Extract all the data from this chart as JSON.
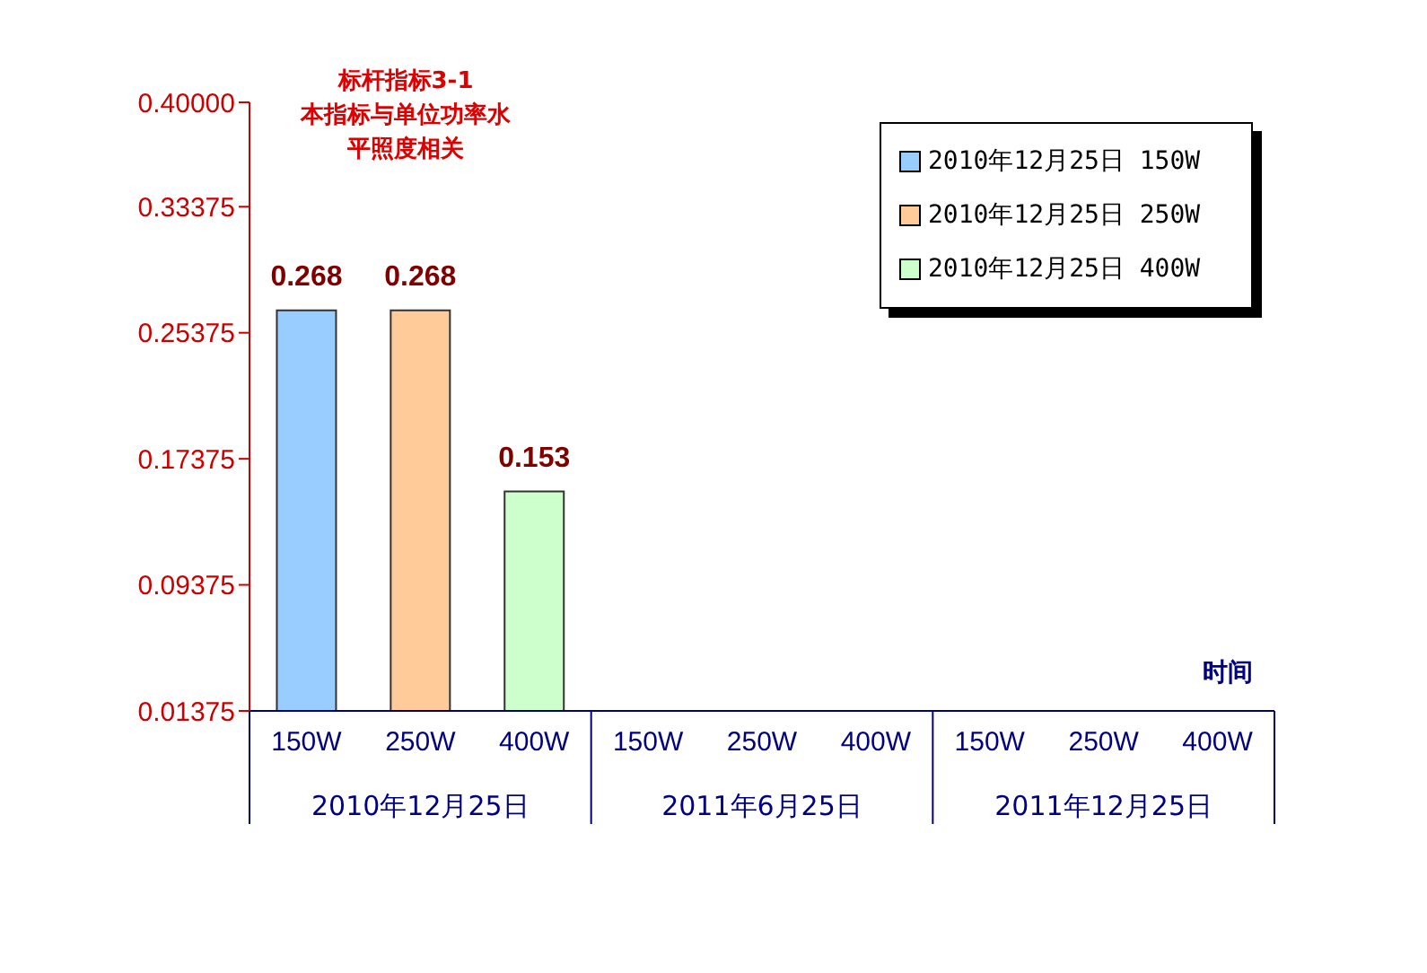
{
  "chart_data": {
    "type": "bar",
    "title": "标杆指标3-1",
    "subtitle": "本指标与单位功率水平照度相关",
    "xlabel": "时间",
    "categories": [
      "150W",
      "250W",
      "400W",
      "150W",
      "250W",
      "400W",
      "150W",
      "250W",
      "400W"
    ],
    "series": [
      {
        "name": "2010年12月25日 150W",
        "color": "#99ccff",
        "values": [
          0.268,
          null,
          null,
          null,
          null,
          null,
          null,
          null,
          null
        ]
      },
      {
        "name": "2010年12月25日 250W",
        "color": "#ffcc99",
        "values": [
          null,
          0.268,
          null,
          null,
          null,
          null,
          null,
          null,
          null
        ]
      },
      {
        "name": "2010年12月25日 400W",
        "color": "#ccffcc",
        "values": [
          null,
          null,
          0.153,
          null,
          null,
          null,
          null,
          null,
          null
        ]
      }
    ],
    "annotations": [
      "2010年12月25日",
      "2011年6月25日",
      "2011年12月25日"
    ],
    "ylim": [
      0.01375,
      0.4
    ],
    "yticks": [
      0.01375,
      0.09375,
      0.17375,
      0.25375,
      0.33375,
      {
        "value": 0.4,
        "label": "0.40000"
      }
    ],
    "data_labels": true,
    "legend": "top right",
    "grid": false
  }
}
